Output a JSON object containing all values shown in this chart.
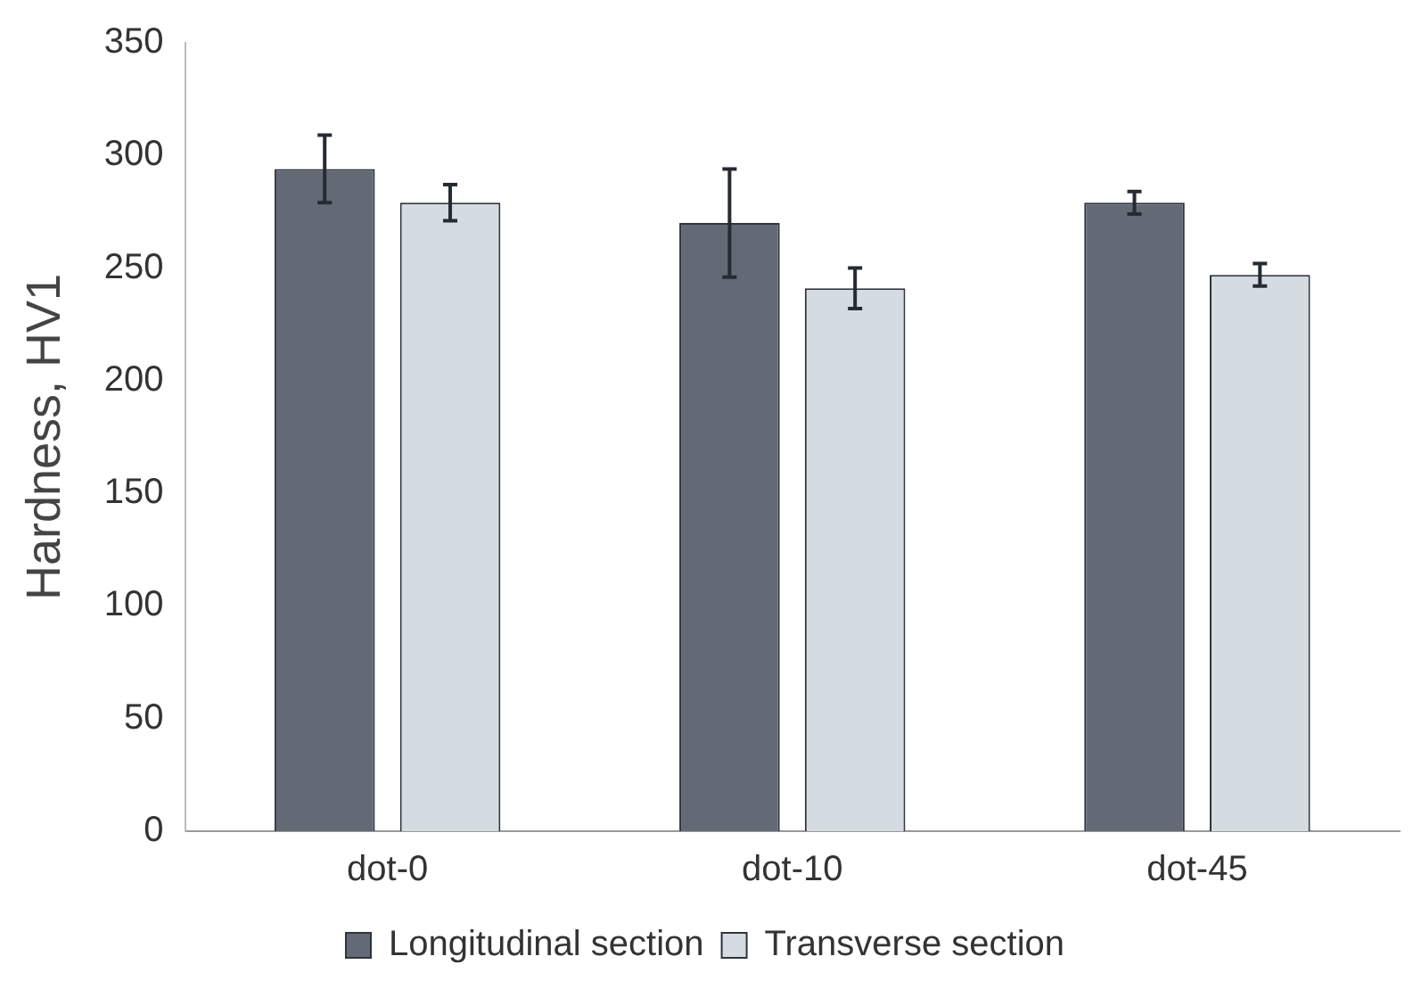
{
  "chart_data": {
    "type": "bar",
    "ylabel": "Hardness, HV1",
    "categories": [
      "dot-0",
      "dot-10",
      "dot-45"
    ],
    "series": [
      {
        "name": "Longitudinal section",
        "color": "#646a75",
        "values": [
          294,
          270,
          279
        ],
        "errors": [
          15,
          24,
          5
        ]
      },
      {
        "name": "Transverse section",
        "color": "#d4dbe1",
        "values": [
          279,
          241,
          247
        ],
        "errors": [
          8,
          9,
          5
        ]
      }
    ],
    "ylim": [
      0,
      350
    ],
    "yticks": [
      0,
      50,
      100,
      150,
      200,
      250,
      300,
      350
    ],
    "grid": false,
    "legend": "bottom"
  }
}
